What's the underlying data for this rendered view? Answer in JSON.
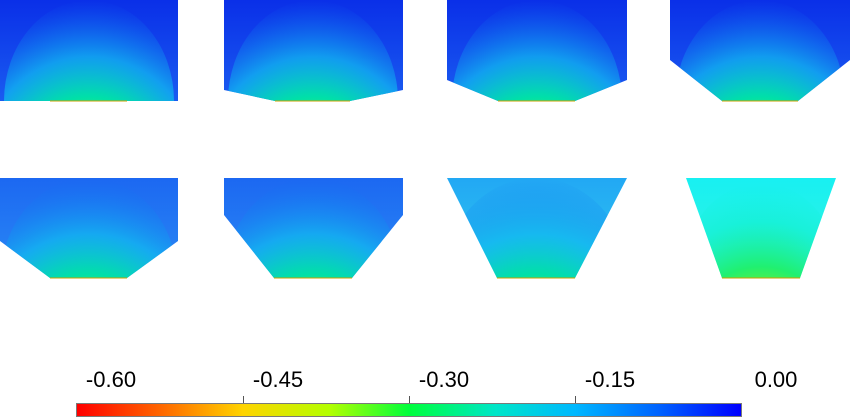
{
  "figure": {
    "panels": [
      {
        "id": "panel-1",
        "shape": "rectangle",
        "field": "semi-elliptical plume, peak at bottom center"
      },
      {
        "id": "panel-2",
        "shape": "slight taper",
        "field": "semi-elliptical plume, peak at bottom center"
      },
      {
        "id": "panel-3",
        "shape": "moderate taper",
        "field": "semi-elliptical plume, peak at bottom center"
      },
      {
        "id": "panel-4",
        "shape": "strong taper",
        "field": "semi-elliptical plume, peak at bottom center"
      },
      {
        "id": "panel-5",
        "shape": "taper",
        "field": "semi-elliptical plume, peak at bottom center"
      },
      {
        "id": "panel-6",
        "shape": "taper",
        "field": "semi-elliptical plume, peak at bottom center"
      },
      {
        "id": "panel-7",
        "shape": "trapezoid",
        "field": "semi-elliptical plume, peak at bottom center"
      },
      {
        "id": "panel-8",
        "shape": "trapezoid",
        "field": "semi-elliptical plume, peak at bottom center"
      }
    ],
    "colorbar": {
      "ticks": [
        "-0.60",
        "-0.45",
        "-0.30",
        "-0.15",
        "0.00"
      ],
      "min": -0.6,
      "max": 0.0,
      "colormap": [
        "#ff0000",
        "#ff6a00",
        "#ffd400",
        "#b4ff00",
        "#00ff3c",
        "#00e6c8",
        "#00b8ff",
        "#0060ff",
        "#0000ff"
      ]
    }
  }
}
